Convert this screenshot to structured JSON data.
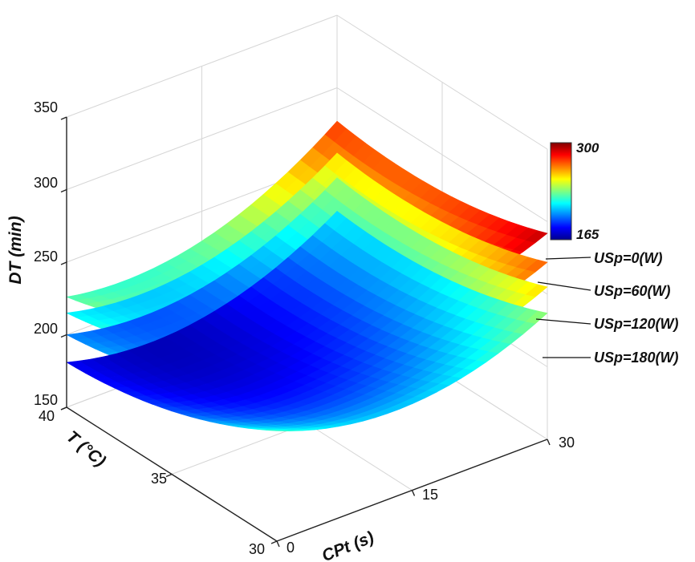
{
  "chart_data": {
    "type": "surface3d",
    "zlabel": "DT (min)",
    "ylabel": "T (°C)",
    "xlabel": "CPt (s)",
    "z_ticks": [
      "150",
      "200",
      "250",
      "300",
      "350"
    ],
    "y_ticks": [
      "40",
      "35",
      "30"
    ],
    "x_ticks": [
      "0",
      "15",
      "30"
    ],
    "zlim": [
      150,
      350
    ],
    "ylim": [
      30,
      40
    ],
    "xlim": [
      0,
      30
    ],
    "grid": true,
    "colormap": "jet",
    "colorbar": {
      "min_label": "165",
      "max_label": "300",
      "min": 165,
      "max": 300
    },
    "series": [
      {
        "name": "USp=0(W)",
        "corner_values": {
          "T40_CPt0": 226,
          "T30_CPt0": 300,
          "T40_CPt30": 277,
          "T30_CPt30": 292
        }
      },
      {
        "name": "USp=60(W)",
        "corner_values": {
          "T40_CPt0": 215,
          "T30_CPt0": 276,
          "T40_CPt30": 255,
          "T30_CPt30": 272
        }
      },
      {
        "name": "USp=120(W)",
        "corner_values": {
          "T40_CPt0": 200,
          "T30_CPt0": 255,
          "T40_CPt30": 238,
          "T30_CPt30": 255
        }
      },
      {
        "name": "USp=180(W)",
        "corner_values": {
          "T40_CPt0": 181,
          "T30_CPt0": 226,
          "T40_CPt30": 215,
          "T30_CPt30": 237
        }
      }
    ]
  }
}
